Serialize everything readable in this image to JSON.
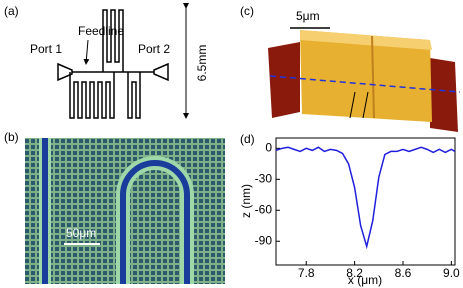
{
  "panel_a": {
    "label": "(a)",
    "port_1": "Port 1",
    "feedline": "Feedline",
    "port_2": "Port 2",
    "size": "6.5mm"
  },
  "panel_b": {
    "label": "(b)",
    "scale_bar": "50μm"
  },
  "panel_c": {
    "label": "(c)",
    "scale_bar": "5μm"
  },
  "chart_data": {
    "type": "line",
    "label": "(d)",
    "x_label": "x (μm)",
    "y_label": "z (nm)",
    "x": [
      7.55,
      7.6,
      7.65,
      7.7,
      7.75,
      7.8,
      7.85,
      7.9,
      7.95,
      8.0,
      8.05,
      8.1,
      8.15,
      8.2,
      8.25,
      8.3,
      8.35,
      8.4,
      8.45,
      8.5,
      8.55,
      8.6,
      8.65,
      8.7,
      8.75,
      8.8,
      8.85,
      8.9,
      8.95,
      9.0,
      9.03
    ],
    "values": [
      -2,
      0,
      1,
      -1,
      -3,
      0,
      -2,
      1,
      -3,
      -1,
      -2,
      -5,
      -15,
      -38,
      -75,
      -95,
      -70,
      -28,
      -6,
      -3,
      -3,
      -1,
      -3,
      -1,
      1,
      -1,
      -4,
      -1,
      -4,
      -1,
      -3
    ],
    "color": "#1f1fdd",
    "xlim": [
      7.55,
      9.03
    ],
    "ylim": [
      -113,
      10
    ],
    "xticks": [
      7.8,
      8.2,
      8.6,
      {
        "value": 9,
        "label": "9.0"
      }
    ],
    "yticks": [
      0,
      -30,
      -60,
      -90
    ]
  }
}
